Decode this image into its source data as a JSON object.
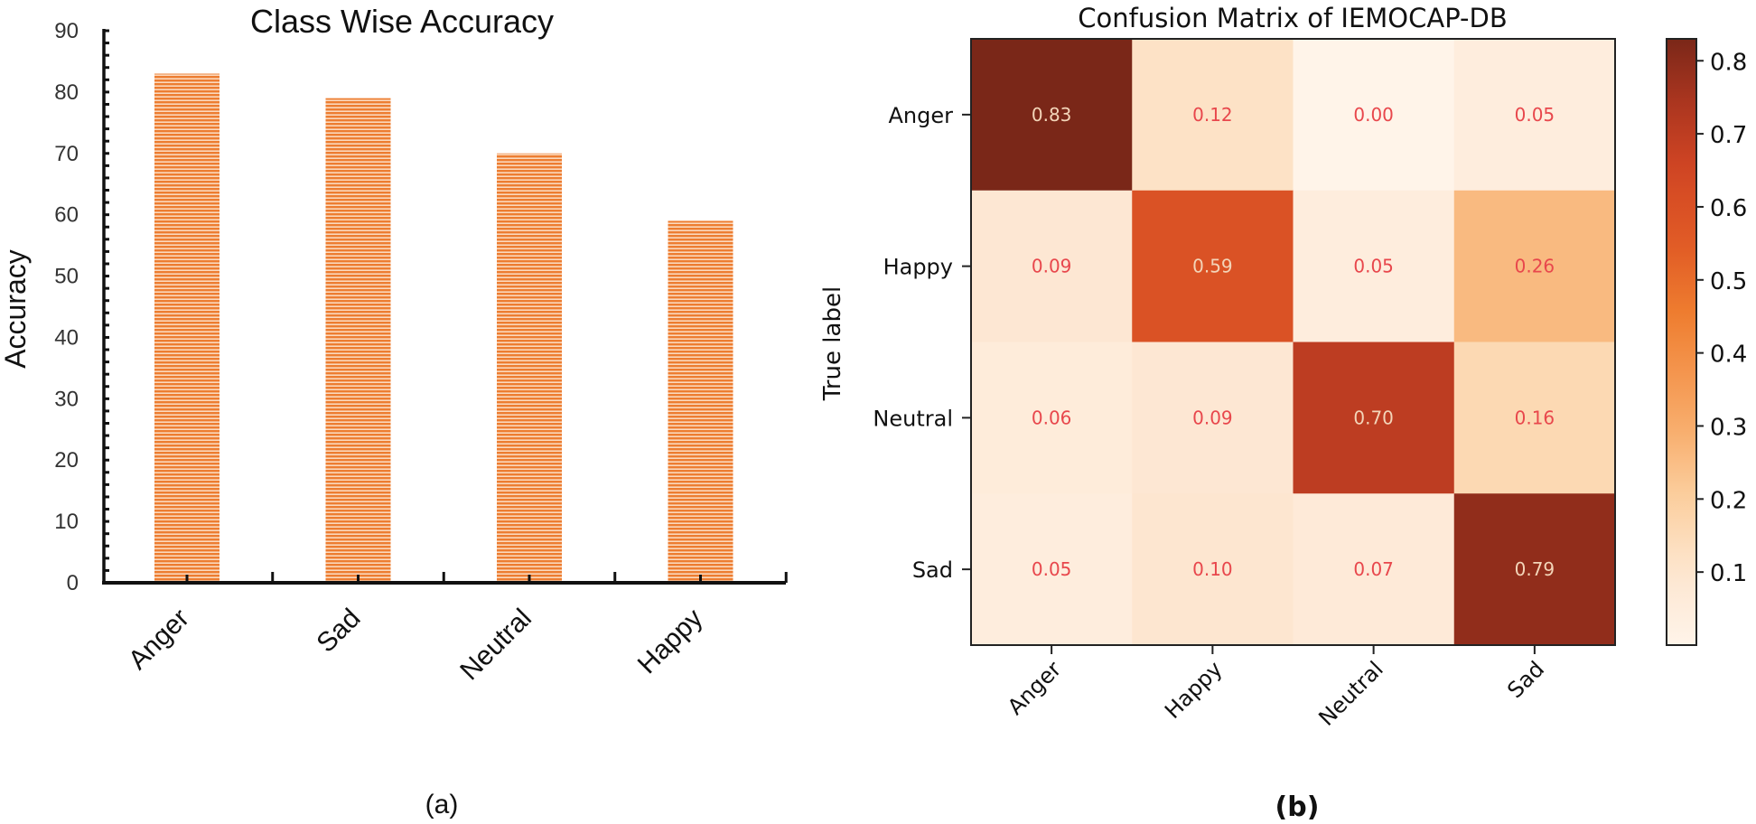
{
  "figure_labels": {
    "a": "(a)",
    "b": "(b)"
  },
  "chart_data": [
    {
      "type": "bar",
      "title": "Class Wise Accuracy",
      "xlabel": "",
      "ylabel": "Accuracy",
      "categories": [
        "Anger",
        "Sad",
        "Neutral",
        "Happy"
      ],
      "values": [
        83,
        79,
        70,
        59
      ],
      "ylim": [
        0,
        90
      ],
      "yticks": [
        0,
        10,
        20,
        30,
        40,
        50,
        60,
        70,
        80,
        90
      ],
      "grid": false,
      "bar_color": "#ed7d31"
    },
    {
      "type": "heatmap",
      "title": "Confusion Matrix of IEMOCAP-DB",
      "xlabel": "",
      "ylabel": "True label",
      "x_categories": [
        "Anger",
        "Happy",
        "Neutral",
        "Sad"
      ],
      "y_categories": [
        "Anger",
        "Happy",
        "Neutral",
        "Sad"
      ],
      "values": [
        [
          0.83,
          0.12,
          0.0,
          0.05
        ],
        [
          0.09,
          0.59,
          0.05,
          0.26
        ],
        [
          0.06,
          0.09,
          0.7,
          0.16
        ],
        [
          0.05,
          0.1,
          0.07,
          0.79
        ]
      ],
      "colormap": "Oranges",
      "colorbar": {
        "range": [
          0,
          0.83
        ],
        "ticks": [
          0.1,
          0.2,
          0.3,
          0.4,
          0.5,
          0.6,
          0.7,
          0.8
        ]
      },
      "text_colors": {
        "light_cell": "#e8474c",
        "dark_cell": "#f3d5b9"
      }
    }
  ]
}
